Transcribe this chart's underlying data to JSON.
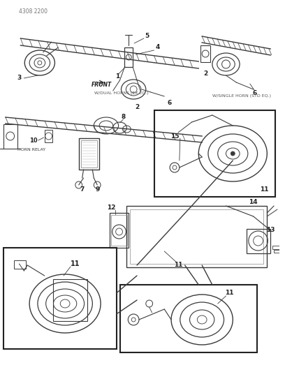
{
  "page_id": "4308 2200",
  "bg_color": "#ffffff",
  "lc": "#3a3a3a",
  "fig_width": 4.08,
  "fig_height": 5.33,
  "dpi": 100,
  "labels": {
    "page_id": "4308 2200",
    "front_label": "FRONT",
    "dual_horns": "W/DUAL HORNS (EX EQ.)",
    "single_horn": "W/SINGLE HORN (STD EQ.)",
    "horn_relay": "HORN RELAY"
  }
}
